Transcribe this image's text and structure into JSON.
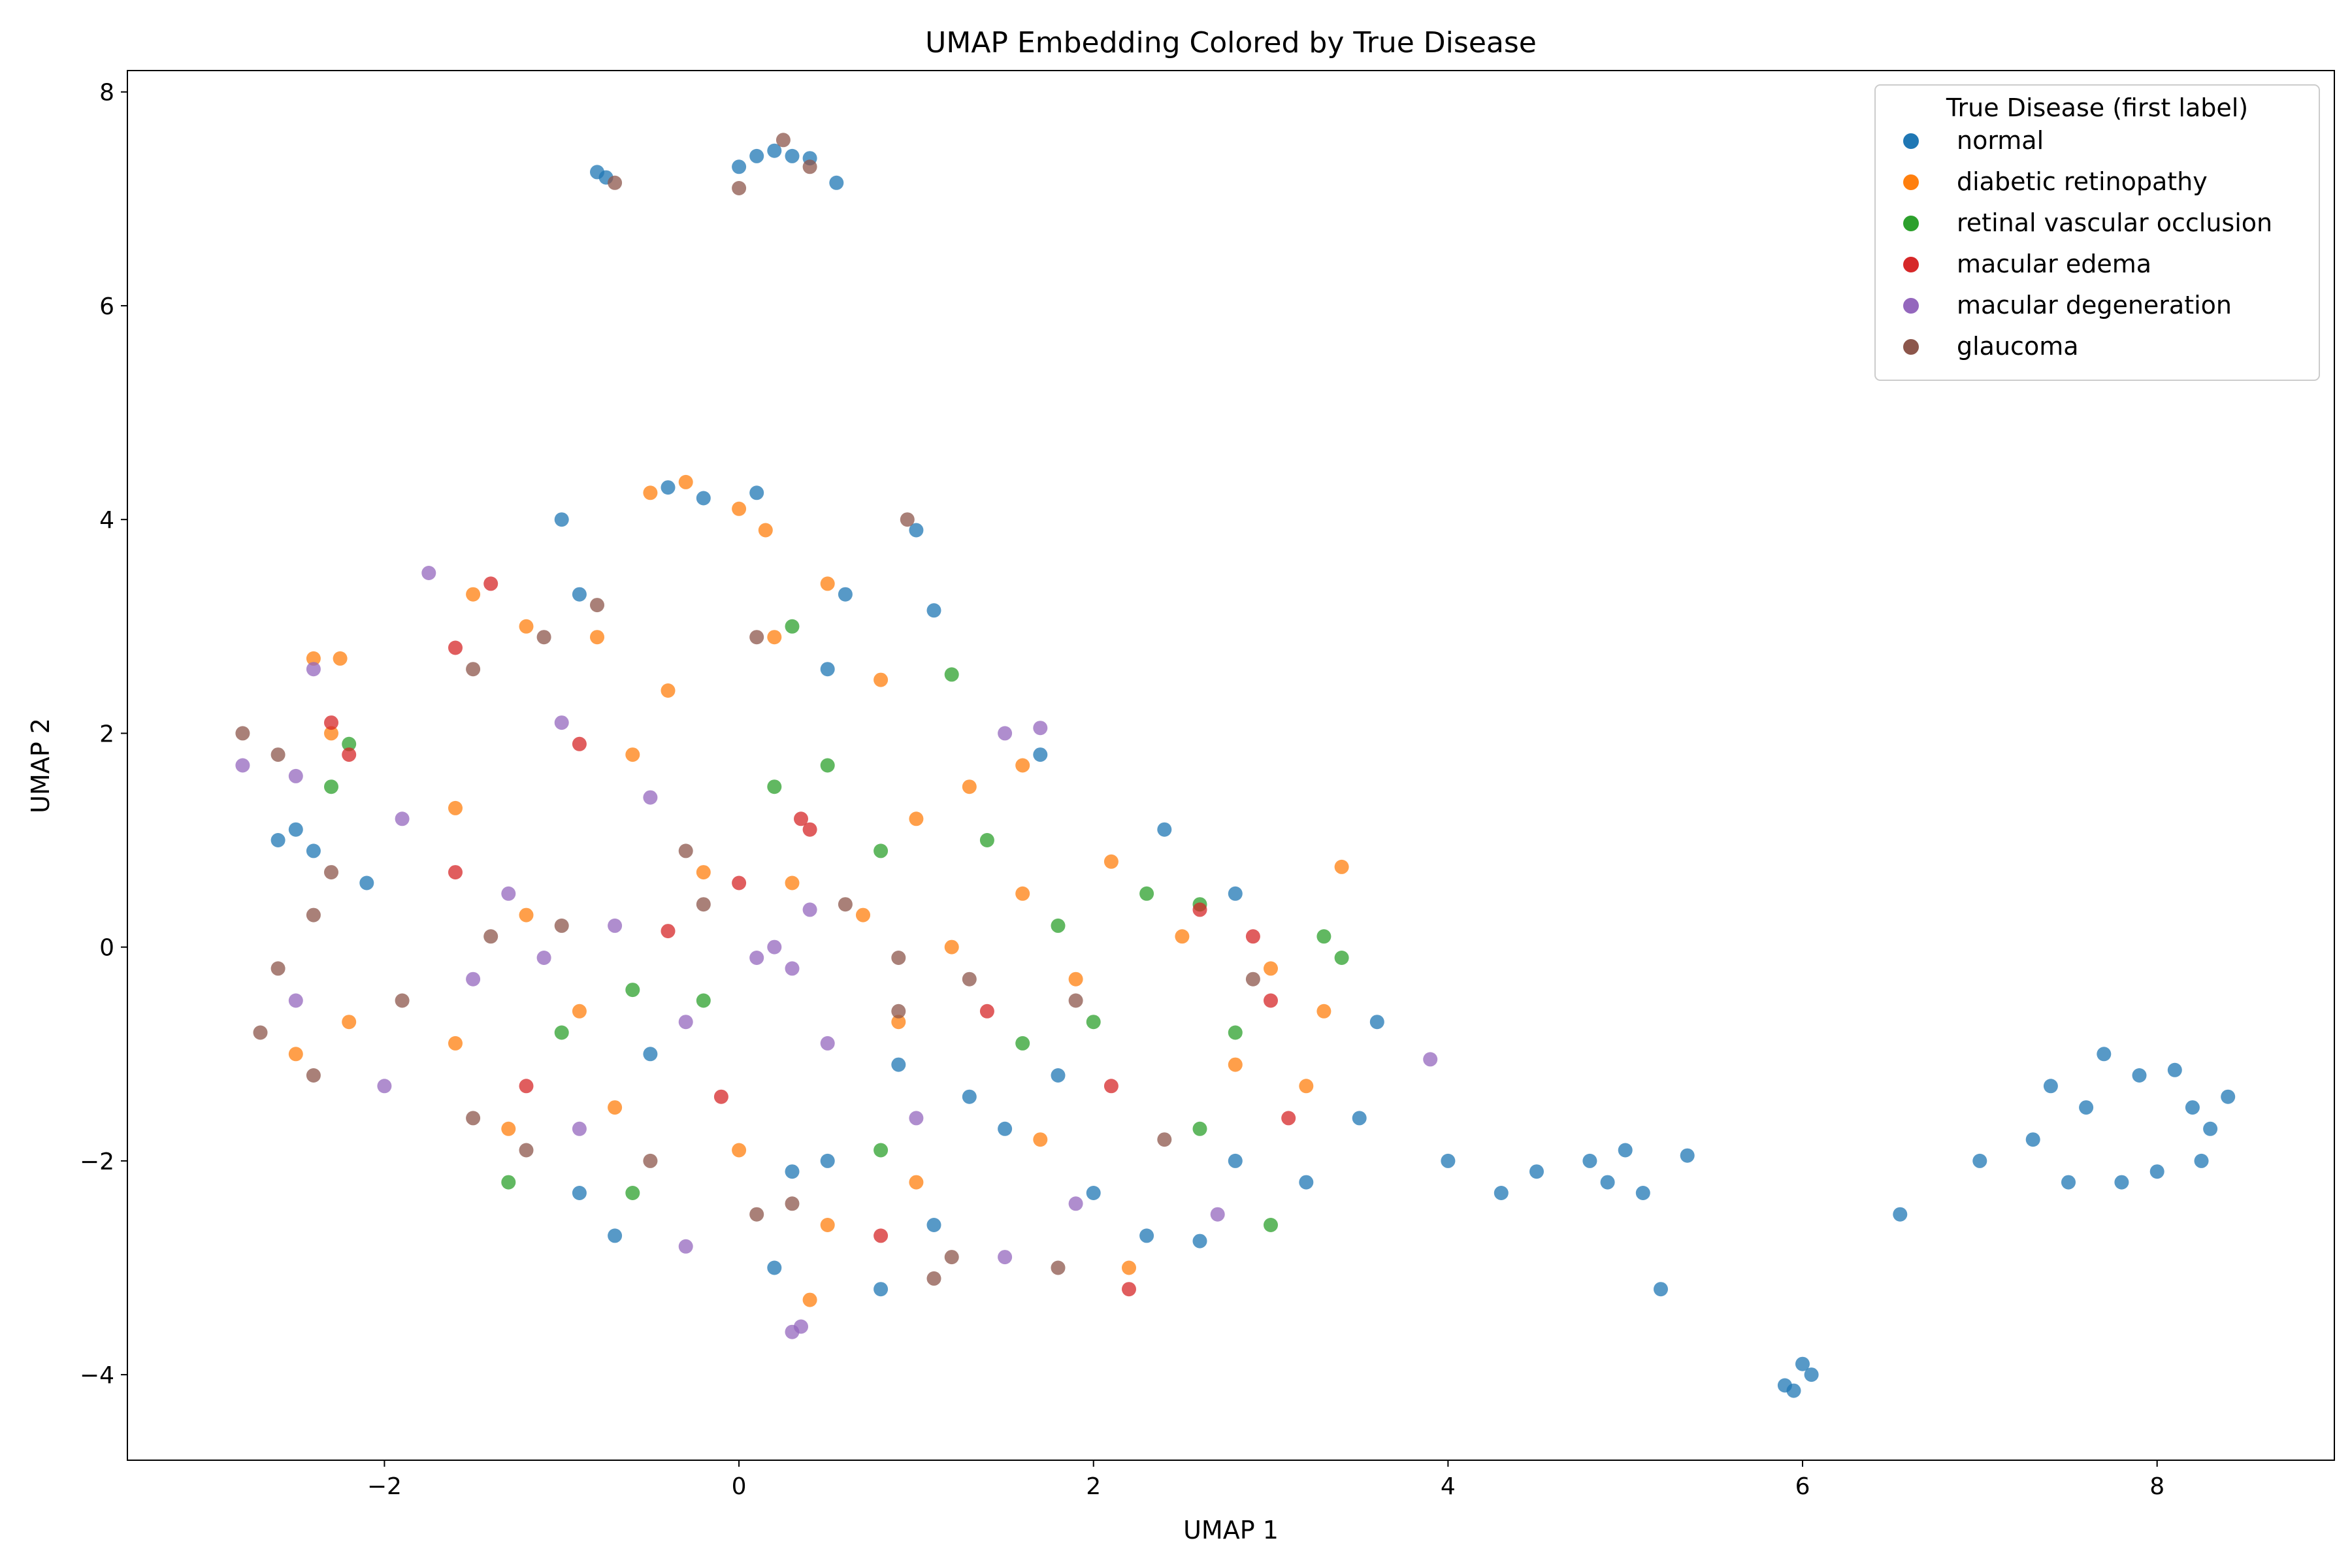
{
  "chart_data": {
    "type": "scatter",
    "title": "UMAP Embedding Colored by True Disease",
    "xlabel": "UMAP 1",
    "ylabel": "UMAP 2",
    "xlim": [
      -3.45,
      9.0
    ],
    "ylim": [
      -4.8,
      8.2
    ],
    "x_ticks": [
      -2,
      0,
      2,
      4,
      6,
      8
    ],
    "y_ticks": [
      -4,
      -2,
      0,
      2,
      4,
      6,
      8
    ],
    "x_tick_labels": [
      "−2",
      "0",
      "2",
      "4",
      "6",
      "8"
    ],
    "y_tick_labels": [
      "−4",
      "−2",
      "0",
      "2",
      "4",
      "6",
      "8"
    ],
    "grid": false,
    "legend": {
      "title": "True Disease (first label)",
      "placement": "top-right"
    },
    "series": [
      {
        "name": "normal",
        "color": "#1f77b4",
        "points": [
          [
            -0.8,
            7.25
          ],
          [
            -0.75,
            7.2
          ],
          [
            0.0,
            7.3
          ],
          [
            0.1,
            7.4
          ],
          [
            0.2,
            7.45
          ],
          [
            0.3,
            7.4
          ],
          [
            0.4,
            7.38
          ],
          [
            0.55,
            7.15
          ],
          [
            -0.4,
            4.3
          ],
          [
            -0.2,
            4.2
          ],
          [
            0.1,
            4.25
          ],
          [
            1.0,
            3.9
          ],
          [
            1.1,
            3.15
          ],
          [
            -0.9,
            3.3
          ],
          [
            -1.0,
            4.0
          ],
          [
            -2.5,
            1.1
          ],
          [
            -2.6,
            1.0
          ],
          [
            -2.4,
            0.9
          ],
          [
            -2.1,
            0.6
          ],
          [
            0.5,
            2.6
          ],
          [
            0.6,
            3.3
          ],
          [
            1.7,
            1.8
          ],
          [
            2.4,
            1.1
          ],
          [
            2.8,
            0.5
          ],
          [
            -0.5,
            -1.0
          ],
          [
            -0.7,
            -2.7
          ],
          [
            0.3,
            -2.1
          ],
          [
            0.5,
            -2.0
          ],
          [
            0.9,
            -1.1
          ],
          [
            1.3,
            -1.4
          ],
          [
            1.5,
            -1.7
          ],
          [
            1.8,
            -1.2
          ],
          [
            2.0,
            -2.3
          ],
          [
            2.3,
            -2.7
          ],
          [
            2.6,
            -2.75
          ],
          [
            2.8,
            -2.0
          ],
          [
            3.2,
            -2.2
          ],
          [
            3.5,
            -1.6
          ],
          [
            3.6,
            -0.7
          ],
          [
            1.1,
            -2.6
          ],
          [
            0.8,
            -3.2
          ],
          [
            0.2,
            -3.0
          ],
          [
            -0.9,
            -2.3
          ],
          [
            4.0,
            -2.0
          ],
          [
            4.3,
            -2.3
          ],
          [
            4.5,
            -2.1
          ],
          [
            4.8,
            -2.0
          ],
          [
            4.9,
            -2.2
          ],
          [
            5.0,
            -1.9
          ],
          [
            5.1,
            -2.3
          ],
          [
            5.35,
            -1.95
          ],
          [
            5.2,
            -3.2
          ],
          [
            6.55,
            -2.5
          ],
          [
            5.9,
            -4.1
          ],
          [
            6.0,
            -3.9
          ],
          [
            6.05,
            -4.0
          ],
          [
            5.95,
            -4.15
          ],
          [
            7.0,
            -2.0
          ],
          [
            7.3,
            -1.8
          ],
          [
            7.5,
            -2.2
          ],
          [
            7.7,
            -1.0
          ],
          [
            7.9,
            -1.2
          ],
          [
            8.1,
            -1.15
          ],
          [
            8.2,
            -1.5
          ],
          [
            8.3,
            -1.7
          ],
          [
            8.25,
            -2.0
          ],
          [
            8.0,
            -2.1
          ],
          [
            7.8,
            -2.2
          ],
          [
            7.6,
            -1.5
          ],
          [
            7.4,
            -1.3
          ],
          [
            8.4,
            -1.4
          ]
        ]
      },
      {
        "name": "diabetic retinopathy",
        "color": "#ff7f0e",
        "points": [
          [
            -0.3,
            4.35
          ],
          [
            0.0,
            4.1
          ],
          [
            0.15,
            3.9
          ],
          [
            -0.5,
            4.25
          ],
          [
            -2.4,
            2.7
          ],
          [
            -2.25,
            2.7
          ],
          [
            -2.3,
            2.0
          ],
          [
            -1.5,
            3.3
          ],
          [
            -1.2,
            3.0
          ],
          [
            -0.8,
            2.9
          ],
          [
            -0.4,
            2.4
          ],
          [
            0.2,
            2.9
          ],
          [
            0.5,
            3.4
          ],
          [
            0.8,
            2.5
          ],
          [
            1.0,
            1.2
          ],
          [
            1.3,
            1.5
          ],
          [
            1.6,
            1.7
          ],
          [
            -1.6,
            1.3
          ],
          [
            -1.2,
            0.3
          ],
          [
            -0.6,
            1.8
          ],
          [
            -0.2,
            0.7
          ],
          [
            0.3,
            0.6
          ],
          [
            0.7,
            0.3
          ],
          [
            1.2,
            0.0
          ],
          [
            1.6,
            0.5
          ],
          [
            2.1,
            0.8
          ],
          [
            2.5,
            0.1
          ],
          [
            3.0,
            -0.2
          ],
          [
            3.4,
            0.75
          ],
          [
            3.3,
            -0.6
          ],
          [
            -2.5,
            -1.0
          ],
          [
            -2.2,
            -0.7
          ],
          [
            -1.6,
            -0.9
          ],
          [
            -1.3,
            -1.7
          ],
          [
            -0.7,
            -1.5
          ],
          [
            0.0,
            -1.9
          ],
          [
            0.5,
            -2.6
          ],
          [
            1.0,
            -2.2
          ],
          [
            1.7,
            -1.8
          ],
          [
            2.2,
            -3.0
          ],
          [
            2.8,
            -1.1
          ],
          [
            3.2,
            -1.3
          ],
          [
            0.4,
            -3.3
          ],
          [
            -0.9,
            -0.6
          ],
          [
            0.9,
            -0.7
          ],
          [
            1.9,
            -0.3
          ]
        ]
      },
      {
        "name": "retinal vascular occlusion",
        "color": "#2ca02c",
        "points": [
          [
            1.2,
            2.55
          ],
          [
            0.3,
            3.0
          ],
          [
            -2.2,
            1.9
          ],
          [
            -2.3,
            1.5
          ],
          [
            0.2,
            1.5
          ],
          [
            0.5,
            1.7
          ],
          [
            0.8,
            0.9
          ],
          [
            1.4,
            1.0
          ],
          [
            1.8,
            0.2
          ],
          [
            2.3,
            0.5
          ],
          [
            2.6,
            0.4
          ],
          [
            2.8,
            -0.8
          ],
          [
            3.3,
            0.1
          ],
          [
            3.4,
            -0.1
          ],
          [
            -1.0,
            -0.8
          ],
          [
            -0.6,
            -0.4
          ],
          [
            -1.3,
            -2.2
          ],
          [
            -0.6,
            -2.3
          ],
          [
            1.6,
            -0.9
          ],
          [
            2.0,
            -0.7
          ],
          [
            3.0,
            -2.6
          ],
          [
            2.6,
            -1.7
          ],
          [
            0.8,
            -1.9
          ],
          [
            -0.2,
            -0.5
          ]
        ]
      },
      {
        "name": "macular edema",
        "color": "#d62728",
        "points": [
          [
            -2.3,
            2.1
          ],
          [
            -2.2,
            1.8
          ],
          [
            -1.6,
            2.8
          ],
          [
            -1.4,
            3.4
          ],
          [
            -0.9,
            1.9
          ],
          [
            0.35,
            1.2
          ],
          [
            0.4,
            1.1
          ],
          [
            -1.6,
            0.7
          ],
          [
            -0.4,
            0.15
          ],
          [
            0.0,
            0.6
          ],
          [
            2.6,
            0.35
          ],
          [
            2.9,
            0.1
          ],
          [
            3.0,
            -0.5
          ],
          [
            -1.2,
            -1.3
          ],
          [
            -0.1,
            -1.4
          ],
          [
            1.4,
            -0.6
          ],
          [
            2.1,
            -1.3
          ],
          [
            2.2,
            -3.2
          ],
          [
            3.1,
            -1.6
          ],
          [
            0.8,
            -2.7
          ]
        ]
      },
      {
        "name": "macular degeneration",
        "color": "#9467bd",
        "points": [
          [
            -1.75,
            3.5
          ],
          [
            -2.8,
            1.7
          ],
          [
            -2.5,
            1.6
          ],
          [
            -2.4,
            2.6
          ],
          [
            -1.0,
            2.1
          ],
          [
            -0.5,
            1.4
          ],
          [
            -1.9,
            1.2
          ],
          [
            -1.3,
            0.5
          ],
          [
            -0.7,
            0.2
          ],
          [
            0.1,
            -0.1
          ],
          [
            0.2,
            0.0
          ],
          [
            0.3,
            -0.2
          ],
          [
            0.4,
            0.35
          ],
          [
            1.5,
            2.0
          ],
          [
            1.7,
            2.05
          ],
          [
            3.9,
            -1.05
          ],
          [
            -2.5,
            -0.5
          ],
          [
            -2.0,
            -1.3
          ],
          [
            -1.5,
            -0.3
          ],
          [
            -0.9,
            -1.7
          ],
          [
            -0.3,
            -0.7
          ],
          [
            0.5,
            -0.9
          ],
          [
            1.0,
            -1.6
          ],
          [
            1.5,
            -2.9
          ],
          [
            0.3,
            -3.6
          ],
          [
            0.35,
            -3.55
          ],
          [
            -0.3,
            -2.8
          ],
          [
            2.7,
            -2.5
          ],
          [
            1.9,
            -2.4
          ],
          [
            -1.1,
            -0.1
          ]
        ]
      },
      {
        "name": "glaucoma",
        "color": "#8c564b",
        "points": [
          [
            -0.7,
            7.15
          ],
          [
            0.25,
            7.55
          ],
          [
            0.0,
            7.1
          ],
          [
            0.4,
            7.3
          ],
          [
            0.95,
            4.0
          ],
          [
            -2.8,
            2.0
          ],
          [
            -2.6,
            1.8
          ],
          [
            -1.5,
            2.6
          ],
          [
            -1.1,
            2.9
          ],
          [
            -0.8,
            3.2
          ],
          [
            0.1,
            2.9
          ],
          [
            -2.3,
            0.7
          ],
          [
            -2.4,
            0.3
          ],
          [
            -2.6,
            -0.2
          ],
          [
            -2.7,
            -0.8
          ],
          [
            -2.4,
            -1.2
          ],
          [
            -1.9,
            -0.5
          ],
          [
            -1.4,
            0.1
          ],
          [
            -1.0,
            0.2
          ],
          [
            -0.3,
            0.9
          ],
          [
            0.6,
            0.4
          ],
          [
            0.9,
            -0.6
          ],
          [
            1.3,
            -0.3
          ],
          [
            1.9,
            -0.5
          ],
          [
            2.4,
            -1.8
          ],
          [
            2.9,
            -0.3
          ],
          [
            0.1,
            -2.5
          ],
          [
            0.3,
            -2.4
          ],
          [
            -0.5,
            -2.0
          ],
          [
            -1.2,
            -1.9
          ],
          [
            -1.5,
            -1.6
          ],
          [
            1.2,
            -2.9
          ],
          [
            1.1,
            -3.1
          ],
          [
            1.8,
            -3.0
          ],
          [
            0.9,
            -0.1
          ],
          [
            -0.2,
            0.4
          ]
        ]
      }
    ]
  }
}
